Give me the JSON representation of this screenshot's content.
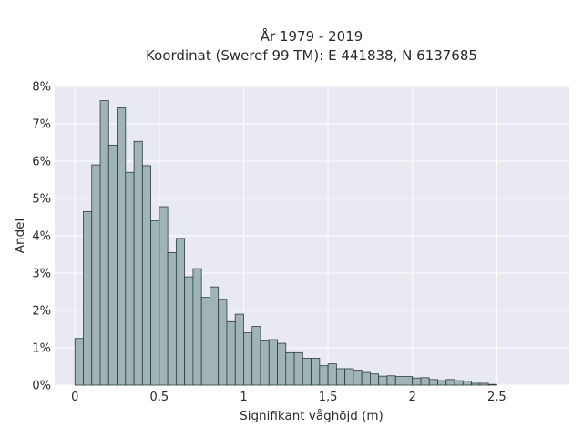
{
  "chart_data": {
    "type": "bar",
    "title_lines": [
      "År 1979 - 2019",
      "Koordinat (Sweref 99 TM): E 441838, N 6137685"
    ],
    "xlabel": "Signifikant våghöjd (m)",
    "ylabel": "Andel",
    "x_ticks": [
      {
        "value": 0,
        "label": "0"
      },
      {
        "value": 0.5,
        "label": "0,5"
      },
      {
        "value": 1,
        "label": "1"
      },
      {
        "value": 1.5,
        "label": "1,5"
      },
      {
        "value": 2,
        "label": "2"
      },
      {
        "value": 2.5,
        "label": "2,5"
      }
    ],
    "y_ticks": [
      {
        "value": 0,
        "label": "0%"
      },
      {
        "value": 1,
        "label": "1%"
      },
      {
        "value": 2,
        "label": "2%"
      },
      {
        "value": 3,
        "label": "3%"
      },
      {
        "value": 4,
        "label": "4%"
      },
      {
        "value": 5,
        "label": "5%"
      },
      {
        "value": 6,
        "label": "6%"
      },
      {
        "value": 7,
        "label": "7%"
      },
      {
        "value": 8,
        "label": "8%"
      }
    ],
    "xlim": [
      -0.12,
      2.93
    ],
    "ylim": [
      0,
      8
    ],
    "y_unit": "percent",
    "bin_width": 0.05,
    "bin_start": 0.0,
    "values": [
      1.25,
      4.65,
      5.9,
      7.62,
      6.43,
      7.43,
      5.7,
      6.53,
      5.88,
      4.4,
      4.78,
      3.55,
      3.93,
      2.9,
      3.12,
      2.35,
      2.63,
      2.3,
      1.7,
      1.9,
      1.4,
      1.57,
      1.18,
      1.22,
      1.12,
      0.87,
      0.87,
      0.72,
      0.72,
      0.52,
      0.57,
      0.44,
      0.44,
      0.4,
      0.34,
      0.3,
      0.24,
      0.25,
      0.23,
      0.23,
      0.19,
      0.2,
      0.15,
      0.12,
      0.15,
      0.12,
      0.11,
      0.05,
      0.05,
      0.02
    ],
    "grid": true,
    "colors": {
      "bar_fill": "#9fb5b5",
      "bar_edge": "#2f3b3b",
      "plot_background": "#e9e9f2",
      "grid": "#ffffff"
    }
  }
}
